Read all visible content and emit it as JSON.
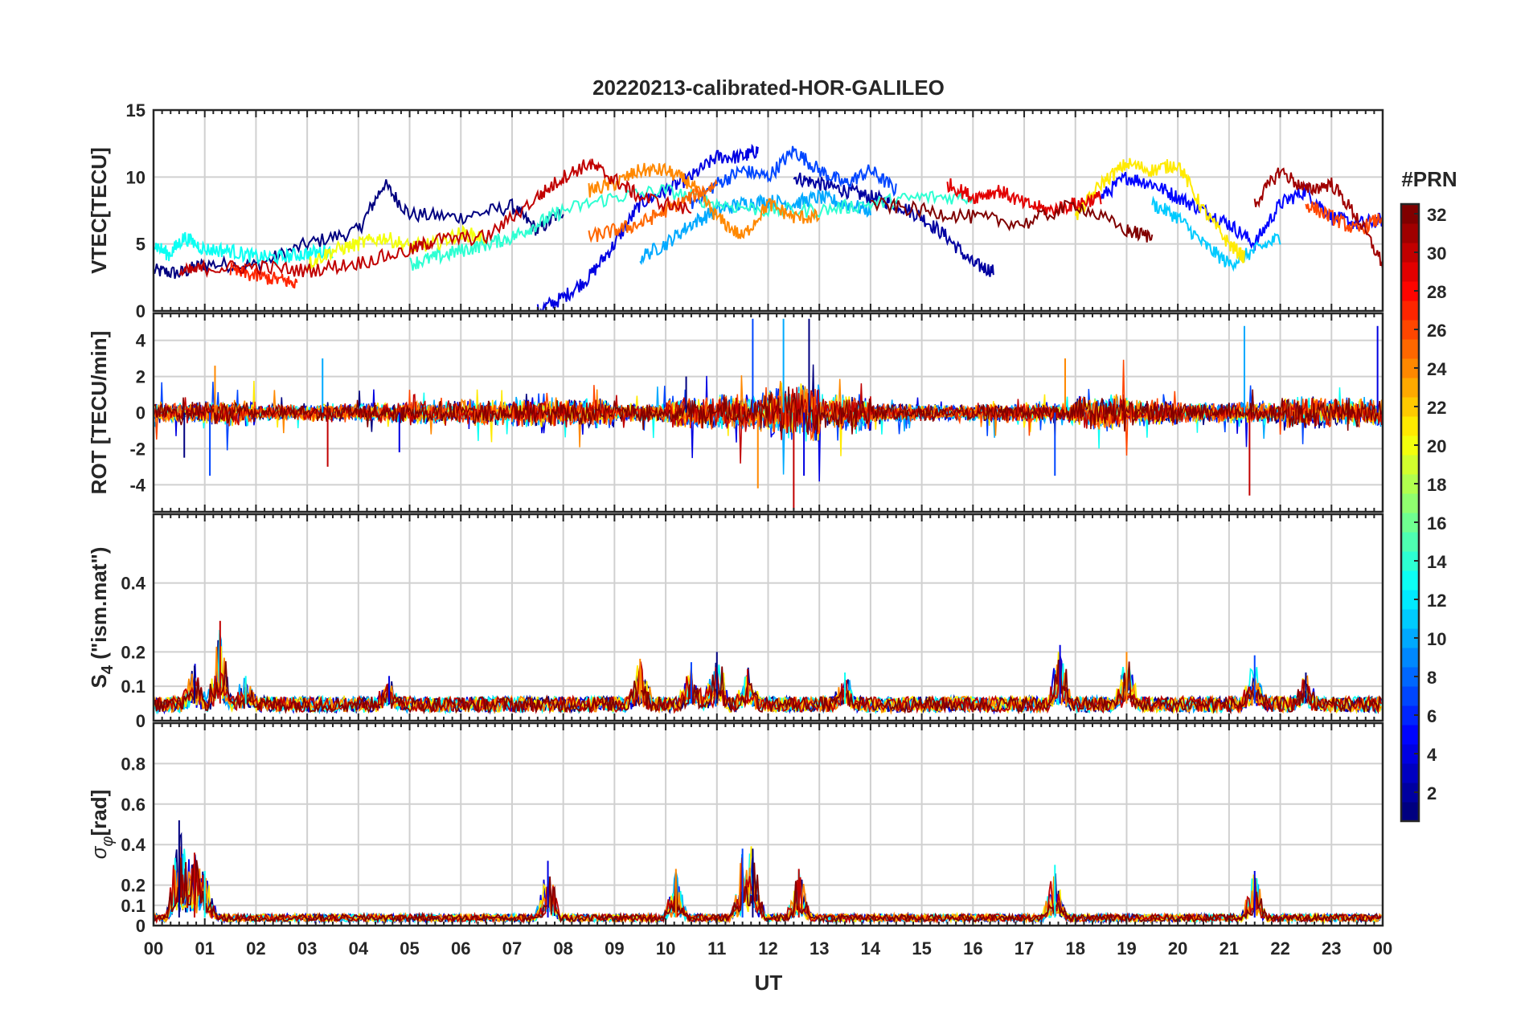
{
  "chart_data": {
    "type": "line",
    "title": "20220213-calibrated-HOR-GALILEO",
    "x_axis": {
      "label": "UT",
      "range_hours": [
        0,
        24
      ],
      "tick_labels": [
        "00",
        "01",
        "02",
        "03",
        "04",
        "05",
        "06",
        "07",
        "08",
        "09",
        "10",
        "11",
        "12",
        "13",
        "14",
        "15",
        "16",
        "17",
        "18",
        "19",
        "20",
        "21",
        "22",
        "23",
        "00"
      ],
      "grid": true
    },
    "colorbar": {
      "label": "#PRN",
      "range": [
        1,
        32
      ],
      "colormap": "jet",
      "tick_labels": [
        "2",
        "4",
        "6",
        "8",
        "10",
        "12",
        "14",
        "16",
        "18",
        "20",
        "22",
        "24",
        "26",
        "28",
        "30",
        "32"
      ],
      "colors": [
        "#00008f",
        "#0000ff",
        "#0080ff",
        "#00ffff",
        "#80ff80",
        "#ffff00",
        "#ff8000",
        "#ff0000",
        "#800000"
      ]
    },
    "panels": [
      {
        "id": "vtec",
        "ylabel": "VTEC[TECU]",
        "ylim": [
          0,
          15
        ],
        "yticks": [
          "0",
          "5",
          "10",
          "15"
        ],
        "series": [
          {
            "prn": 1,
            "x": [
              0.0,
              0.5,
              1.0,
              2.0,
              3.0,
              4.0,
              4.5,
              5.0,
              6.0,
              7.0,
              7.5,
              8.0
            ],
            "y": [
              3.0,
              2.8,
              3.5,
              3.4,
              5.0,
              6.0,
              9.5,
              7.2,
              7.0,
              7.8,
              6.0,
              7.5
            ]
          },
          {
            "prn": 2,
            "x": [
              12.5,
              13.0,
              13.5,
              14.0,
              14.5,
              15.0,
              15.5,
              16.0,
              16.4
            ],
            "y": [
              10.0,
              9.5,
              9.0,
              8.5,
              8.0,
              7.0,
              5.5,
              3.5,
              3.0
            ]
          },
          {
            "prn": 4,
            "x": [
              7.5,
              8.0,
              8.5,
              9.0,
              9.5,
              10.0,
              10.5,
              11.0,
              11.5,
              11.8
            ],
            "y": [
              0.0,
              1.0,
              2.5,
              5.0,
              8.0,
              9.0,
              10.0,
              11.5,
              11.5,
              12.0
            ]
          },
          {
            "prn": 5,
            "x": [
              18.5,
              19.0,
              19.5,
              20.0,
              20.5,
              21.0,
              21.5,
              22.0,
              22.5,
              23.0,
              23.5,
              24.0
            ],
            "y": [
              8.5,
              10.0,
              9.5,
              8.5,
              7.5,
              6.5,
              5.0,
              8.0,
              9.0,
              7.0,
              6.5,
              6.8
            ]
          },
          {
            "prn": 7,
            "x": [
              10.5,
              11.0,
              11.5,
              12.0,
              12.5,
              13.0,
              13.5,
              14.0,
              14.5
            ],
            "y": [
              8.0,
              9.5,
              10.5,
              10.0,
              12.0,
              10.5,
              9.5,
              10.5,
              9.0
            ]
          },
          {
            "prn": 10,
            "x": [
              9.5,
              10.0,
              10.5,
              11.0,
              11.5,
              12.0,
              12.5,
              13.0,
              13.5,
              14.0
            ],
            "y": [
              4.0,
              5.0,
              6.5,
              7.5,
              8.0,
              8.2,
              8.0,
              8.5,
              8.0,
              7.5
            ]
          },
          {
            "prn": 11,
            "x": [
              19.5,
              20.0,
              20.5,
              21.0,
              21.5,
              22.0
            ],
            "y": [
              8.0,
              7.0,
              5.0,
              3.5,
              4.5,
              5.5
            ]
          },
          {
            "prn": 13,
            "x": [
              0.0,
              0.3,
              0.6,
              1.0,
              1.5,
              2.0,
              2.5,
              3.0,
              3.5
            ],
            "y": [
              5.0,
              4.2,
              5.5,
              4.6,
              4.5,
              4.0,
              4.0,
              4.3,
              4.5
            ]
          },
          {
            "prn": 14,
            "x": [
              5.0,
              5.5,
              6.0,
              6.5,
              7.0,
              7.5,
              8.0,
              9.0,
              10.0,
              11.0,
              12.0,
              13.0,
              14.0,
              15.0,
              16.0
            ],
            "y": [
              3.5,
              4.0,
              4.5,
              5.0,
              5.5,
              6.5,
              7.5,
              8.5,
              9.0,
              8.0,
              7.5,
              7.5,
              8.0,
              8.5,
              8.5
            ]
          },
          {
            "prn": 20,
            "x": [
              3.0,
              3.5,
              4.0,
              4.5,
              5.0,
              5.5,
              6.0,
              6.5
            ],
            "y": [
              3.5,
              4.5,
              5.0,
              5.5,
              4.8,
              5.0,
              5.8,
              5.5
            ]
          },
          {
            "prn": 21,
            "x": [
              18.0,
              18.5,
              19.0,
              19.5,
              20.0,
              20.5,
              21.0,
              21.3
            ],
            "y": [
              7.0,
              9.5,
              11.0,
              10.5,
              11.0,
              7.5,
              5.0,
              4.0
            ]
          },
          {
            "prn": 24,
            "x": [
              8.5,
              9.0,
              9.5,
              10.0,
              10.5,
              11.0,
              11.5,
              12.0,
              12.5,
              13.0
            ],
            "y": [
              9.0,
              9.5,
              10.5,
              10.5,
              9.5,
              7.0,
              5.5,
              8.0,
              7.0,
              7.0
            ]
          },
          {
            "prn": 25,
            "x": [
              8.5,
              9.0,
              9.5,
              10.0,
              10.5,
              11.0
            ],
            "y": [
              5.5,
              6.0,
              6.5,
              7.5,
              8.5,
              9.5
            ]
          },
          {
            "prn": 26,
            "x": [
              22.5,
              23.0,
              23.5,
              24.0
            ],
            "y": [
              8.0,
              7.0,
              6.0,
              7.0
            ]
          },
          {
            "prn": 27,
            "x": [
              1.5,
              2.0,
              2.5,
              2.8
            ],
            "y": [
              3.0,
              2.6,
              2.3,
              2.0
            ]
          },
          {
            "prn": 29,
            "x": [
              15.5,
              16.0,
              16.5,
              17.0,
              17.5,
              18.0,
              18.5
            ],
            "y": [
              9.5,
              8.5,
              9.0,
              8.0,
              7.5,
              8.0,
              8.5
            ]
          },
          {
            "prn": 30,
            "x": [
              0.5,
              1.0,
              2.0,
              3.0,
              4.0,
              5.0,
              5.5,
              6.5,
              7.5,
              8.0,
              8.5,
              9.0,
              9.5,
              10.5
            ],
            "y": [
              2.8,
              3.2,
              3.3,
              3.0,
              3.6,
              4.5,
              5.3,
              5.5,
              8.5,
              10.0,
              11.0,
              9.8,
              8.5,
              7.5
            ]
          },
          {
            "prn": 31,
            "x": [
              21.5,
              22.0,
              22.5,
              23.0,
              23.5,
              24.0
            ],
            "y": [
              8.0,
              10.5,
              9.0,
              9.5,
              7.0,
              3.5
            ]
          },
          {
            "prn": 32,
            "x": [
              14.0,
              15.0,
              16.0,
              17.0,
              18.0,
              19.0,
              19.5
            ],
            "y": [
              8.0,
              7.5,
              7.0,
              6.5,
              8.0,
              6.0,
              5.5
            ]
          }
        ]
      },
      {
        "id": "rot",
        "ylabel": "ROT [TECU/min]",
        "ylim": [
          -5.5,
          5.5
        ],
        "yticks": [
          "-4",
          "-2",
          "0",
          "2",
          "4"
        ],
        "noise_amplitude_by_hour": [
          0.4,
          0.5,
          0.3,
          0.35,
          0.4,
          0.45,
          0.5,
          0.55,
          0.55,
          0.35,
          0.6,
          0.7,
          1.1,
          0.7,
          0.35,
          0.3,
          0.35,
          0.4,
          0.7,
          0.5,
          0.4,
          0.4,
          0.6,
          0.55
        ],
        "spikes": [
          {
            "x": 0.6,
            "y": -2.5
          },
          {
            "x": 1.1,
            "y": -3.5
          },
          {
            "x": 1.2,
            "y": 2.6
          },
          {
            "x": 3.3,
            "y": 3.0
          },
          {
            "x": 3.4,
            "y": -3.0
          },
          {
            "x": 4.8,
            "y": -2.2
          },
          {
            "x": 10.4,
            "y": 2.0
          },
          {
            "x": 11.7,
            "y": 5.2
          },
          {
            "x": 11.8,
            "y": -4.2
          },
          {
            "x": 12.3,
            "y": 5.2
          },
          {
            "x": 12.5,
            "y": -5.4
          },
          {
            "x": 12.7,
            "y": -3.5
          },
          {
            "x": 12.8,
            "y": 5.2
          },
          {
            "x": 17.6,
            "y": -3.5
          },
          {
            "x": 17.8,
            "y": 3.0
          },
          {
            "x": 21.3,
            "y": 4.8
          },
          {
            "x": 21.4,
            "y": -4.6
          },
          {
            "x": 23.9,
            "y": 4.8
          },
          {
            "x": 24.0,
            "y": -3.0
          }
        ]
      },
      {
        "id": "s4",
        "ylabel": "S₄ (\"ism.mat\")",
        "ylim": [
          0,
          0.6
        ],
        "yticks": [
          "0",
          "0.1",
          "0.2",
          "0.4"
        ],
        "baseline": 0.05,
        "peaks": [
          {
            "x": 0.8,
            "y": 0.16
          },
          {
            "x": 1.3,
            "y": 0.29
          },
          {
            "x": 1.8,
            "y": 0.13
          },
          {
            "x": 4.6,
            "y": 0.13
          },
          {
            "x": 9.5,
            "y": 0.18
          },
          {
            "x": 10.5,
            "y": 0.17
          },
          {
            "x": 11.0,
            "y": 0.2
          },
          {
            "x": 11.6,
            "y": 0.15
          },
          {
            "x": 13.5,
            "y": 0.14
          },
          {
            "x": 17.7,
            "y": 0.22
          },
          {
            "x": 19.0,
            "y": 0.2
          },
          {
            "x": 21.5,
            "y": 0.19
          },
          {
            "x": 22.5,
            "y": 0.14
          }
        ]
      },
      {
        "id": "sigma",
        "ylabel": "σ_φ[rad]",
        "ylim": [
          0,
          1.0
        ],
        "yticks": [
          "0",
          "0.1",
          "0.2",
          "0.4",
          "0.6",
          "0.8"
        ],
        "baseline": 0.04,
        "peaks": [
          {
            "x": 0.5,
            "y": 0.52
          },
          {
            "x": 0.8,
            "y": 0.36
          },
          {
            "x": 1.0,
            "y": 0.27
          },
          {
            "x": 7.7,
            "y": 0.32
          },
          {
            "x": 10.2,
            "y": 0.28
          },
          {
            "x": 11.5,
            "y": 0.38
          },
          {
            "x": 11.7,
            "y": 0.38
          },
          {
            "x": 12.6,
            "y": 0.28
          },
          {
            "x": 17.6,
            "y": 0.3
          },
          {
            "x": 21.5,
            "y": 0.27
          }
        ]
      }
    ]
  }
}
